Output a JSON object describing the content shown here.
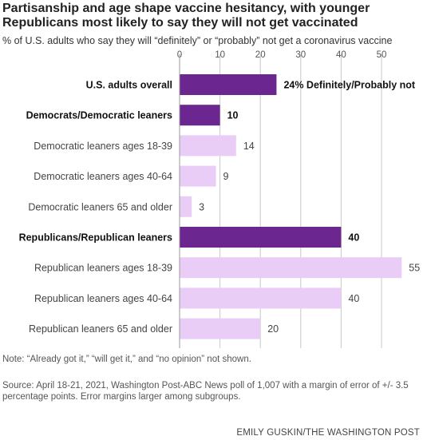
{
  "title": "Partisanship and age shape vaccine hesitancy, with younger Republicans most likely to say they will not get vaccinated",
  "subtitle": "% of U.S. adults who say they will “definitely” or “probably” not get a coronavirus vaccine",
  "note": "Note: “Already got it,” “will get it,” and “no opinion” not shown.",
  "source": "Source: April 18-21, 2021, Washington Post-ABC News poll of 1,007 with a margin of error of +/- 3.5 percentage points. Error margins larger among subgroups.",
  "credit": "EMILY GUSKIN/THE WASHINGTON POST",
  "colors": {
    "dark": "#6b2690",
    "light": "#e9cdf7",
    "grid": "#c8c8c8"
  },
  "chart_data": {
    "type": "bar",
    "orientation": "horizontal",
    "categories": [
      "U.S. adults overall",
      "Democrats/Democratic leaners",
      "Democratic leaners ages 18-39",
      "Democratic leaners ages 40-64",
      "Democratic leaners 65 and older",
      "Republicans/Republican leaners",
      "Republican leaners ages 18-39",
      "Republican leaners ages 40-64",
      "Republican leaners 65 and older"
    ],
    "values": [
      24,
      10,
      14,
      9,
      3,
      40,
      55,
      40,
      20
    ],
    "data_labels": [
      "24% Definitely/Probably not",
      "10",
      "14",
      "9",
      "3",
      "40",
      "55",
      "40",
      "20"
    ],
    "highlight": [
      true,
      true,
      false,
      false,
      false,
      true,
      false,
      false,
      false
    ],
    "xticks": [
      0,
      10,
      20,
      30,
      40,
      50
    ],
    "xlim": [
      0,
      55
    ],
    "grid": true,
    "xaxis_position": "top"
  }
}
